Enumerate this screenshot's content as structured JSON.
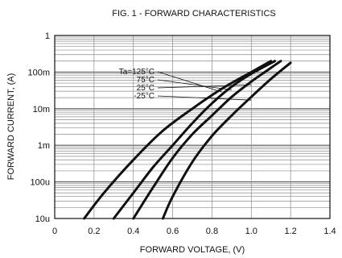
{
  "chart_data": {
    "type": "line",
    "title": "FIG. 1 - FORWARD CHARACTERISTICS",
    "xlabel": "FORWARD VOLTAGE, (V)",
    "ylabel": "FORWARD CURRENT, (A)",
    "xlim": [
      0,
      1.4
    ],
    "ylim": [
      1e-05,
      1
    ],
    "y_scale": "log",
    "grid": true,
    "x_ticks": [
      {
        "value": 0,
        "label": "0"
      },
      {
        "value": 0.2,
        "label": "0.2"
      },
      {
        "value": 0.4,
        "label": "0.4"
      },
      {
        "value": 0.6,
        "label": "0.6"
      },
      {
        "value": 0.8,
        "label": "0.8"
      },
      {
        "value": 1.0,
        "label": "1.0"
      },
      {
        "value": 1.2,
        "label": "1.2"
      },
      {
        "value": 1.4,
        "label": "1.4"
      }
    ],
    "y_ticks": [
      {
        "value": 1,
        "label": "1"
      },
      {
        "value": 0.1,
        "label": "100m"
      },
      {
        "value": 0.01,
        "label": "10m"
      },
      {
        "value": 0.001,
        "label": "1m"
      },
      {
        "value": 0.0001,
        "label": "100u"
      },
      {
        "value": 1e-05,
        "label": "10u"
      }
    ],
    "legend": {
      "placement": "top-left",
      "prefix": "Ta=",
      "entries": [
        "125°C",
        "75°C",
        "25°C",
        "-25°C"
      ]
    },
    "series": [
      {
        "name": "125°C",
        "x": [
          0.15,
          0.25,
          0.4,
          0.55,
          0.7,
          0.85,
          1.0,
          1.1
        ],
        "y": [
          1e-05,
          5e-05,
          0.0004,
          0.0025,
          0.01,
          0.035,
          0.1,
          0.2
        ]
      },
      {
        "name": "75°C",
        "x": [
          0.3,
          0.4,
          0.5,
          0.6,
          0.7,
          0.8,
          0.9,
          1.0,
          1.12
        ],
        "y": [
          1e-05,
          5e-05,
          0.00025,
          0.001,
          0.004,
          0.014,
          0.04,
          0.09,
          0.2
        ]
      },
      {
        "name": "25°C",
        "x": [
          0.4,
          0.5,
          0.6,
          0.7,
          0.8,
          0.9,
          1.0,
          1.08,
          1.15
        ],
        "y": [
          1e-05,
          7e-05,
          0.00045,
          0.002,
          0.0065,
          0.021,
          0.055,
          0.11,
          0.2
        ]
      },
      {
        "name": "-25°C",
        "x": [
          0.55,
          0.6,
          0.7,
          0.8,
          0.9,
          1.0,
          1.1,
          1.2
        ],
        "y": [
          1e-05,
          4e-05,
          0.00035,
          0.0018,
          0.0065,
          0.021,
          0.065,
          0.18
        ]
      }
    ]
  }
}
